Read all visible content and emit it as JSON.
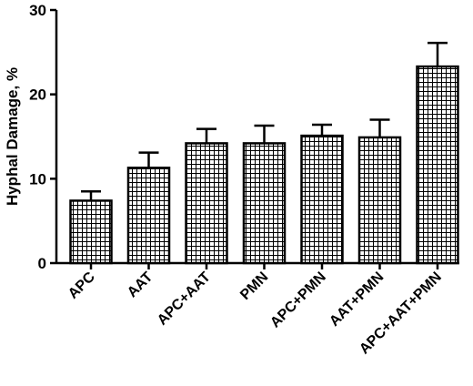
{
  "chart_data": {
    "type": "bar",
    "title": "",
    "xlabel": "",
    "ylabel": "Hyphal Damage, %",
    "ylim": [
      0,
      30
    ],
    "yticks": [
      0,
      10,
      20,
      30
    ],
    "grid": false,
    "bar_fill": "crosshatch grid",
    "colors": {
      "bar_stroke": "#000000",
      "hatch": "#000000",
      "background": "#ffffff"
    },
    "categories": [
      "APC",
      "AAT",
      "APC+AAT",
      "PMN",
      "APC+PMN",
      "AAT+PMN",
      "APC+AAT+PMN"
    ],
    "values": [
      7.4,
      11.3,
      14.2,
      14.2,
      15.1,
      14.9,
      23.3
    ],
    "error_upper": [
      1.1,
      1.8,
      1.7,
      2.1,
      1.3,
      2.1,
      2.8
    ]
  }
}
